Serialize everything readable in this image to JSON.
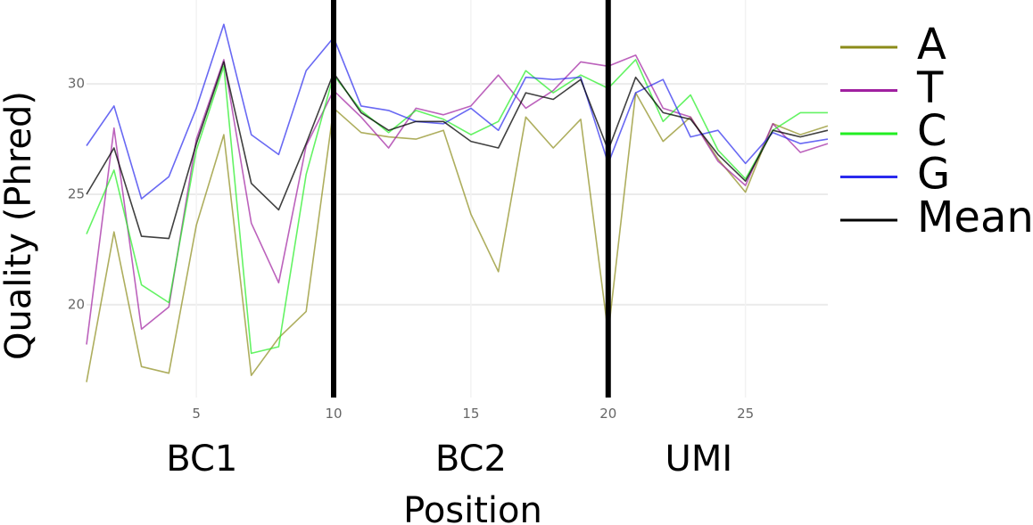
{
  "chart_data": {
    "type": "line",
    "xlabel": "Position",
    "ylabel": "Quality (Phred)",
    "xlim": [
      1,
      28
    ],
    "ylim": [
      15.8,
      33.8
    ],
    "x_ticks": [
      5,
      10,
      15,
      20,
      25
    ],
    "y_ticks": [
      20,
      25,
      30
    ],
    "grid": true,
    "legend_position": "right",
    "x": [
      1,
      2,
      3,
      4,
      5,
      6,
      7,
      8,
      9,
      10,
      11,
      12,
      13,
      14,
      15,
      16,
      17,
      18,
      19,
      20,
      21,
      22,
      23,
      24,
      25,
      26,
      27,
      28
    ],
    "series": [
      {
        "name": "A",
        "color": "#8b8b19",
        "values": [
          16.5,
          23.3,
          17.2,
          16.9,
          23.6,
          27.7,
          16.8,
          18.5,
          19.7,
          28.9,
          27.8,
          27.6,
          27.5,
          27.9,
          24.1,
          21.5,
          28.5,
          27.1,
          28.4,
          18.7,
          29.6,
          27.4,
          28.5,
          26.6,
          25.1,
          28.2,
          27.7,
          28.1
        ]
      },
      {
        "name": "T",
        "color": "#a020a0",
        "values": [
          18.2,
          28.0,
          18.9,
          19.9,
          27.5,
          31.1,
          23.7,
          21.0,
          27.2,
          29.7,
          28.5,
          27.1,
          28.9,
          28.6,
          29.0,
          30.4,
          28.9,
          29.7,
          31.0,
          30.8,
          31.3,
          28.9,
          28.5,
          26.5,
          25.4,
          28.2,
          26.9,
          27.3
        ]
      },
      {
        "name": "C",
        "color": "#22ee22",
        "values": [
          23.2,
          26.1,
          20.9,
          20.1,
          27.0,
          30.8,
          17.8,
          18.1,
          25.9,
          30.4,
          28.8,
          27.8,
          28.8,
          28.4,
          27.7,
          28.3,
          30.6,
          29.6,
          30.4,
          29.8,
          31.1,
          28.3,
          29.5,
          27.0,
          25.7,
          27.9,
          28.7,
          28.7
        ]
      },
      {
        "name": "G",
        "color": "#2a2aee",
        "values": [
          27.2,
          29.0,
          24.8,
          25.8,
          28.9,
          32.7,
          27.7,
          26.8,
          30.6,
          32.1,
          29.0,
          28.8,
          28.3,
          28.2,
          28.9,
          27.9,
          30.3,
          30.2,
          30.3,
          26.4,
          29.6,
          30.2,
          27.6,
          27.9,
          26.4,
          27.8,
          27.3,
          27.5
        ]
      },
      {
        "name": "Mean",
        "color": "#000000",
        "values": [
          25.0,
          27.1,
          23.1,
          23.0,
          27.3,
          31.0,
          25.5,
          24.3,
          27.3,
          30.5,
          28.7,
          27.9,
          28.3,
          28.3,
          27.4,
          27.1,
          29.6,
          29.3,
          30.2,
          27.0,
          30.3,
          28.7,
          28.4,
          26.8,
          25.6,
          27.9,
          27.6,
          27.9
        ]
      }
    ],
    "boundaries": [
      10,
      20
    ],
    "regions": [
      {
        "label": "BC1",
        "center": 5.2
      },
      {
        "label": "BC2",
        "center": 15.0
      },
      {
        "label": "UMI",
        "center": 23.3
      }
    ]
  }
}
